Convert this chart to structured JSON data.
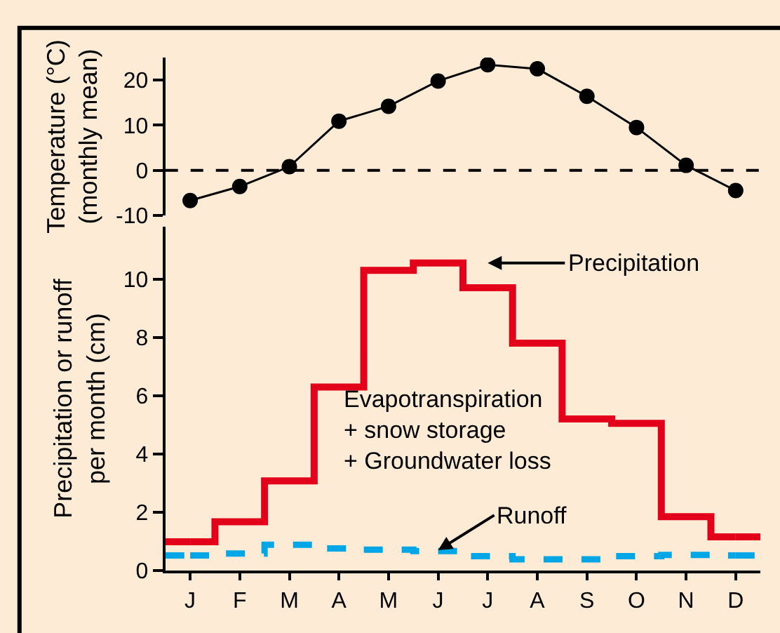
{
  "chart_data": [
    {
      "type": "line",
      "categories": [
        null,
        null,
        null,
        null,
        null,
        null,
        null,
        null,
        null,
        null,
        null,
        null
      ],
      "ylabel": "Temperature (°C)\n(monthly mean)",
      "ylim": [
        -10,
        25
      ],
      "yticks": [
        -10,
        0,
        10,
        20
      ],
      "tick_labels": "y",
      "marker": "circle",
      "grid": false,
      "series": [
        {
          "color": "#000000",
          "values": [
            -6.7,
            -3.6,
            0.8,
            10.9,
            14.2,
            19.8,
            23.4,
            22.5,
            16.4,
            9.5,
            1.1,
            -4.5
          ]
        }
      ],
      "ref_lines": [
        {
          "axis": "y",
          "value": 0,
          "color": "#000000",
          "line_style": "dashed"
        }
      ]
    },
    {
      "type": "step",
      "categories": [
        "J",
        "F",
        "M",
        "A",
        "M",
        "J",
        "J",
        "A",
        "S",
        "O",
        "N",
        "D"
      ],
      "ylabel": "Precipitation or runoff\nper month (cm)",
      "ylim": [
        0,
        11.8
      ],
      "yticks": [
        0,
        2,
        4,
        6,
        8,
        10
      ],
      "grid": false,
      "series": [
        {
          "name": "Precipitation",
          "color": "#e2001a",
          "line_style": "solid",
          "values": [
            0.99,
            1.68,
            3.08,
            6.3,
            10.3,
            10.55,
            9.7,
            7.8,
            5.2,
            5.05,
            1.85,
            1.16
          ]
        },
        {
          "name": "Runoff",
          "color": "#00a6e6",
          "line_style": "dashed",
          "values": [
            0.52,
            0.59,
            0.89,
            0.76,
            0.72,
            0.67,
            0.5,
            0.39,
            0.39,
            0.5,
            0.54,
            0.52
          ]
        }
      ],
      "annotations": [
        "Evapotranspiration\n+ snow storage\n+ Groundwater loss"
      ]
    }
  ]
}
